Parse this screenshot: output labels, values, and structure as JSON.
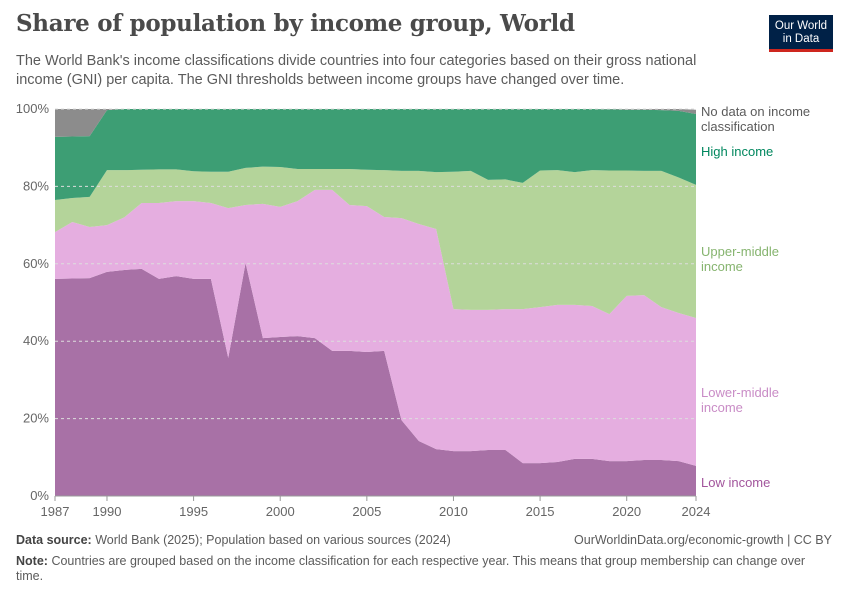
{
  "header": {
    "title": "Share of population by income group, World",
    "subtitle": "The World Bank's income classifications divide countries into four categories based on their gross national income (GNI) per capita. The GNI thresholds between income groups have changed over time.",
    "logo": "Our World in Data"
  },
  "chart_data": {
    "type": "area",
    "stacked": true,
    "x": [
      1987,
      1988,
      1989,
      1990,
      1991,
      1992,
      1993,
      1994,
      1995,
      1996,
      1997,
      1998,
      1999,
      2000,
      2001,
      2002,
      2003,
      2004,
      2005,
      2006,
      2007,
      2008,
      2009,
      2010,
      2011,
      2012,
      2013,
      2014,
      2015,
      2016,
      2017,
      2018,
      2019,
      2020,
      2021,
      2022,
      2023,
      2024
    ],
    "xticks": [
      "1987",
      "1990",
      "1995",
      "2000",
      "2005",
      "2010",
      "2015",
      "2020",
      "2024"
    ],
    "yticks": [
      "0%",
      "20%",
      "40%",
      "60%",
      "80%",
      "100%"
    ],
    "ylim": [
      0,
      100
    ],
    "grid": "horizontal dashed",
    "legend": "right, inline labels",
    "series": [
      {
        "name": "Low income",
        "color": "#a871a6",
        "label_color": "#a2559c",
        "values": [
          56.1,
          56.2,
          56.3,
          57.9,
          58.4,
          58.7,
          56.1,
          56.8,
          56.1,
          56.1,
          35.7,
          60.2,
          40.8,
          41.1,
          41.3,
          40.8,
          37.5,
          37.5,
          37.2,
          37.5,
          19.6,
          14.2,
          12.1,
          11.6,
          11.6,
          11.9,
          11.9,
          8.5,
          8.5,
          8.8,
          9.6,
          9.6,
          9.0,
          9.0,
          9.3,
          9.3,
          9.0,
          7.8
        ]
      },
      {
        "name": "Lower-middle income",
        "color": "#e5aee0",
        "label_color": "#c98cc6",
        "values": [
          12.1,
          14.6,
          13.2,
          12.1,
          13.6,
          17.0,
          19.6,
          19.4,
          20.1,
          19.6,
          38.7,
          15.0,
          34.7,
          33.6,
          34.9,
          38.3,
          41.6,
          37.7,
          37.7,
          34.6,
          52.2,
          56.1,
          56.9,
          36.7,
          36.5,
          36.2,
          36.4,
          39.8,
          40.3,
          40.6,
          39.8,
          39.5,
          38.0,
          42.7,
          42.6,
          39.5,
          38.3,
          38.2
        ]
      },
      {
        "name": "Upper-middle income",
        "color": "#b4d49a",
        "label_color": "#86b46f",
        "values": [
          8.3,
          6.2,
          7.8,
          14.2,
          12.2,
          8.6,
          8.7,
          8.2,
          7.7,
          8.1,
          9.4,
          9.6,
          9.6,
          10.3,
          8.3,
          5.4,
          5.4,
          9.3,
          9.4,
          12.1,
          12.2,
          13.7,
          14.7,
          35.5,
          35.9,
          33.6,
          33.5,
          32.6,
          35.3,
          34.8,
          34.3,
          35.1,
          37.1,
          32.4,
          32.1,
          35.2,
          35.0,
          34.4
        ]
      },
      {
        "name": "High income",
        "color": "#3d9e74",
        "label_color": "#00875e",
        "values": [
          16.3,
          15.9,
          15.7,
          15.5,
          15.8,
          15.7,
          15.6,
          15.6,
          16.1,
          16.2,
          16.2,
          15.2,
          14.9,
          15.0,
          15.5,
          15.5,
          15.5,
          15.5,
          15.7,
          15.8,
          16.0,
          16.0,
          16.3,
          16.2,
          16.0,
          18.3,
          18.2,
          19.1,
          15.9,
          15.8,
          16.3,
          15.8,
          15.8,
          15.7,
          15.8,
          15.7,
          17.2,
          18.3
        ]
      },
      {
        "name": "No data on income classification",
        "color": "#8c8c8c",
        "label_color": "#5b5b5b",
        "values": [
          7.2,
          7.1,
          7.0,
          0.3,
          0,
          0,
          0,
          0,
          0,
          0,
          0,
          0,
          0,
          0,
          0,
          0,
          0,
          0,
          0,
          0,
          0,
          0,
          0,
          0,
          0,
          0,
          0,
          0,
          0,
          0,
          0,
          0,
          0.1,
          0.2,
          0.2,
          0.3,
          0.5,
          1.1
        ]
      }
    ],
    "series_labels": [
      [
        "Low income"
      ],
      [
        "Lower-middle",
        "income"
      ],
      [
        "Upper-middle",
        "income"
      ],
      [
        "High income"
      ],
      [
        "No data on income",
        "classification"
      ]
    ]
  },
  "footer": {
    "source_label": "Data source:",
    "source": "World Bank (2025); Population based on various sources (2024)",
    "license": "OurWorldinData.org/economic-growth | CC BY",
    "note_label": "Note:",
    "note": "Countries are grouped based on the income classification for each respective year. This means that group membership can change over time."
  }
}
